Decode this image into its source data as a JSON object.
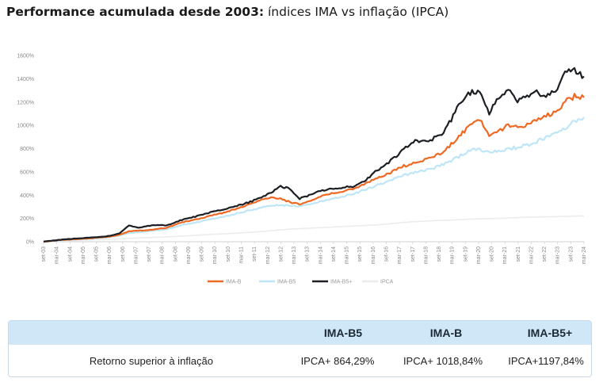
{
  "header": {
    "title_bold": "Performance acumulada desde 2003:",
    "title_rest": " índices IMA vs inflação (IPCA)"
  },
  "chart_data": {
    "type": "line",
    "yticks": [
      "0%",
      "200%",
      "400%",
      "600%",
      "800%",
      "1000%",
      "1200%",
      "1400%",
      "1600%"
    ],
    "ylim": [
      0,
      1600
    ],
    "xticks": [
      "set-03",
      "mar-04",
      "set-04",
      "mar-05",
      "set-05",
      "mar-06",
      "set-06",
      "mar-07",
      "set-07",
      "mar-08",
      "set-08",
      "mar-09",
      "set-09",
      "mar-10",
      "set-10",
      "mar-11",
      "set-11",
      "mar-12",
      "set-12",
      "mar-13",
      "set-13",
      "mar-14",
      "set-14",
      "mar-15",
      "set-15",
      "mar-16",
      "set-16",
      "mar-17",
      "set-17",
      "mar-18",
      "set-18",
      "mar-19",
      "set-19",
      "mar-20",
      "set-20",
      "mar-21",
      "set-21",
      "mar-22",
      "set-22",
      "mar-23",
      "set-23",
      "mar-24"
    ],
    "grid": false,
    "legend_position": "bottom",
    "series": [
      {
        "name": "IMA-B",
        "color": "#ee6a24",
        "values": [
          0,
          8,
          15,
          20,
          25,
          30,
          38,
          45,
          60,
          90,
          95,
          100,
          110,
          120,
          150,
          175,
          190,
          210,
          230,
          250,
          275,
          300,
          330,
          360,
          380,
          370,
          340,
          320,
          350,
          380,
          410,
          420,
          440,
          460,
          500,
          540,
          570,
          610,
          650,
          680,
          700,
          730,
          760,
          840,
          920,
          1000,
          1050,
          900,
          950,
          1000,
          980,
          1000,
          1040,
          1080,
          1120,
          1200,
          1250,
          1240
        ]
      },
      {
        "name": "IMA-B5",
        "color": "#bfe6f6",
        "values": [
          0,
          6,
          12,
          17,
          22,
          27,
          33,
          40,
          52,
          75,
          80,
          88,
          98,
          108,
          130,
          150,
          165,
          180,
          200,
          215,
          235,
          255,
          275,
          295,
          310,
          315,
          310,
          305,
          320,
          340,
          360,
          380,
          400,
          420,
          450,
          480,
          510,
          540,
          570,
          590,
          610,
          630,
          660,
          700,
          740,
          780,
          800,
          760,
          780,
          800,
          810,
          830,
          860,
          900,
          940,
          980,
          1030,
          1070
        ]
      },
      {
        "name": "IMA-B5+",
        "color": "#1c1f24",
        "values": [
          0,
          10,
          18,
          25,
          30,
          35,
          42,
          50,
          72,
          140,
          120,
          135,
          145,
          140,
          170,
          200,
          215,
          240,
          260,
          275,
          300,
          320,
          350,
          380,
          420,
          480,
          450,
          370,
          400,
          430,
          450,
          460,
          470,
          480,
          530,
          600,
          660,
          720,
          800,
          860,
          870,
          880,
          920,
          1050,
          1200,
          1280,
          1300,
          1100,
          1250,
          1300,
          1200,
          1250,
          1280,
          1250,
          1300,
          1450,
          1480,
          1420
        ]
      },
      {
        "name": "IPCA",
        "color": "#ececec",
        "values": [
          0,
          3,
          6,
          9,
          12,
          15,
          18,
          21,
          24,
          28,
          32,
          35,
          38,
          42,
          46,
          50,
          55,
          60,
          64,
          68,
          72,
          77,
          82,
          88,
          95,
          102,
          108,
          112,
          116,
          120,
          124,
          128,
          132,
          136,
          140,
          144,
          150,
          158,
          166,
          172,
          176,
          180,
          184,
          186,
          190,
          194,
          196,
          198,
          200,
          204,
          208,
          210,
          212,
          214,
          216,
          218,
          220,
          222
        ]
      }
    ]
  },
  "table": {
    "headers": [
      "IMA-B5",
      "IMA-B",
      "IMA-B5+"
    ],
    "row_label": "Retorno superior à inflação",
    "values": [
      "IPCA+ 864,29%",
      "IPCA+ 1018,84%",
      "IPCA+1197,84%"
    ]
  }
}
